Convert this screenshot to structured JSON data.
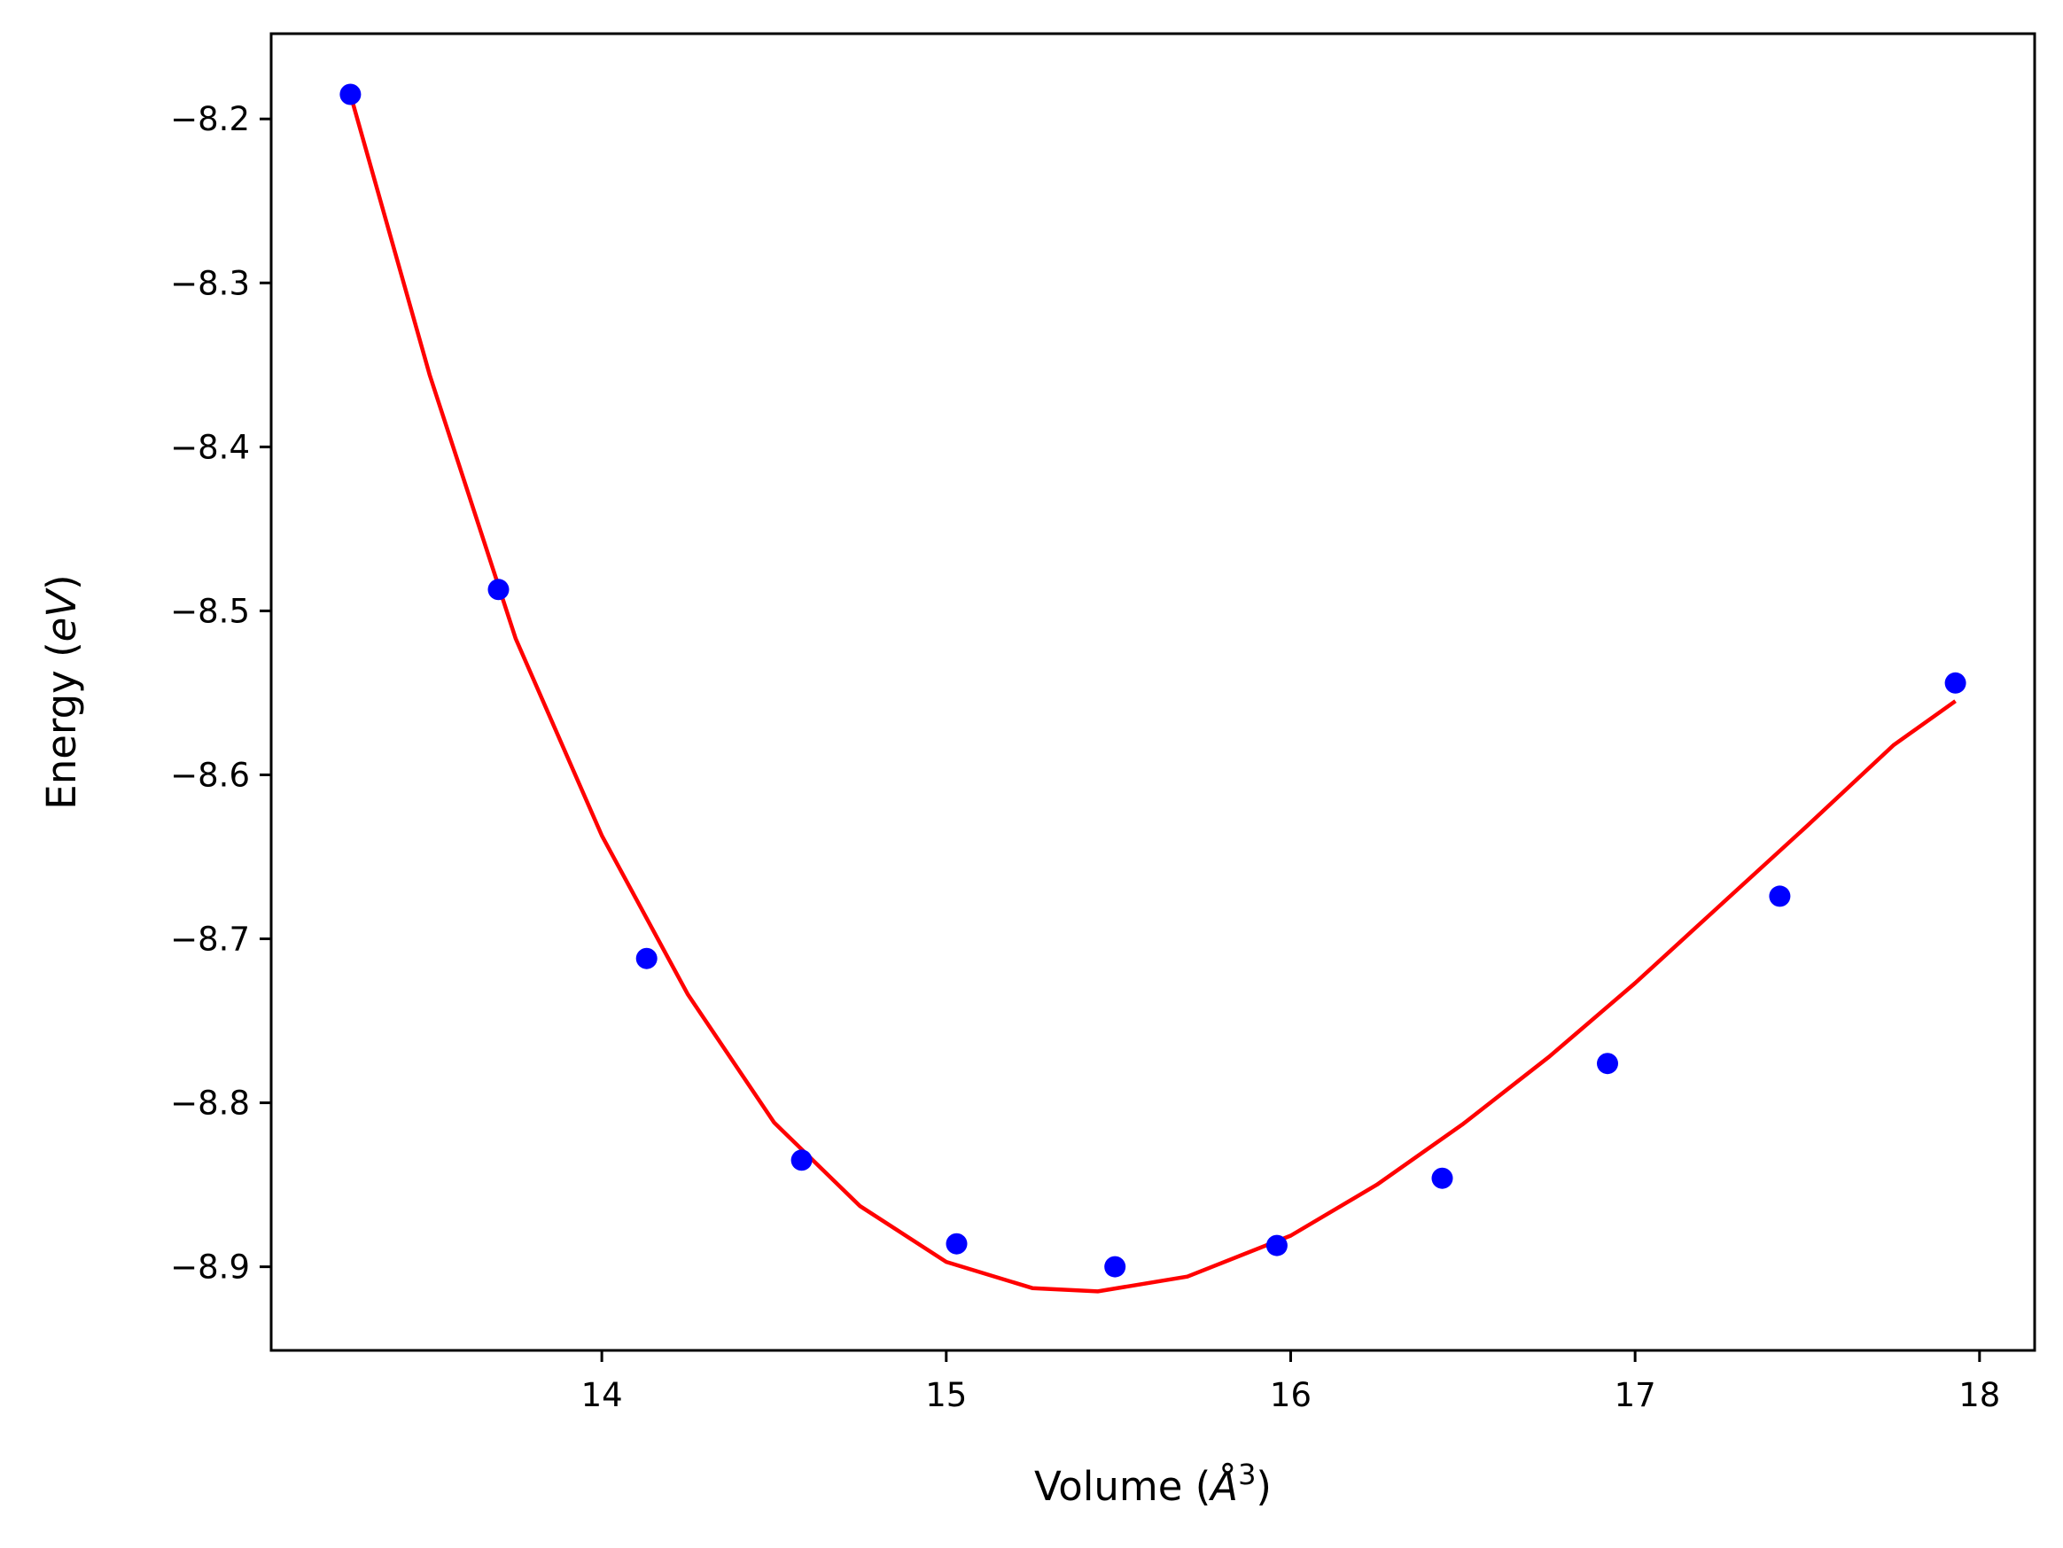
{
  "chart_data": {
    "type": "scatter",
    "xlabel": "Volume",
    "xlabel_unit": "Å",
    "xlabel_unit_exp": "3",
    "ylabel": "Energy",
    "ylabel_unit": "eV",
    "xlim": [
      13.04,
      18.16
    ],
    "ylim": [
      -8.951,
      -8.148
    ],
    "xticks": [
      14,
      15,
      16,
      17,
      18
    ],
    "yticks": [
      -8.2,
      -8.3,
      -8.4,
      -8.5,
      -8.6,
      -8.7,
      -8.8,
      -8.9
    ],
    "xtick_labels": [
      "14",
      "15",
      "16",
      "17",
      "18"
    ],
    "ytick_labels": [
      "−8.2",
      "−8.3",
      "−8.4",
      "−8.5",
      "−8.6",
      "−8.7",
      "−8.8",
      "−8.9"
    ],
    "grid": false,
    "series": [
      {
        "kind": "points",
        "color": "#0000ff",
        "x": [
          13.27,
          13.7,
          14.13,
          14.58,
          15.03,
          15.49,
          15.96,
          16.44,
          16.92,
          17.42,
          17.93
        ],
        "y": [
          -8.185,
          -8.487,
          -8.712,
          -8.835,
          -8.886,
          -8.9,
          -8.887,
          -8.846,
          -8.776,
          -8.674,
          -8.544
        ]
      },
      {
        "kind": "fit-line",
        "color": "#ff0000",
        "x": [
          13.27,
          13.5,
          13.75,
          14.0,
          14.25,
          14.5,
          14.75,
          15.0,
          15.25,
          15.44,
          15.7,
          16.0,
          16.25,
          16.5,
          16.75,
          17.0,
          17.25,
          17.5,
          17.75,
          17.93
        ],
        "y": [
          -8.185,
          -8.356,
          -8.517,
          -8.637,
          -8.734,
          -8.812,
          -8.863,
          -8.897,
          -8.913,
          -8.915,
          -8.906,
          -8.881,
          -8.85,
          -8.813,
          -8.772,
          -8.727,
          -8.679,
          -8.631,
          -8.582,
          -8.555
        ]
      }
    ]
  }
}
